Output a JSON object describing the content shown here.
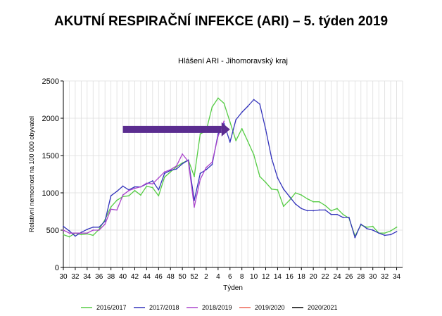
{
  "headline": "AKUTNÍ RESPIRAČNÍ INFEKCE (ARI) – 5. týden 2019",
  "chart_data": {
    "type": "line",
    "title": "Hlášení ARI   -   Jihomoravský kraj",
    "xlabel": "Týden",
    "ylabel": "Relativní nemocnost na 100 000 obyvatel",
    "ylim": [
      0,
      2500
    ],
    "yticks": [
      0,
      500,
      1000,
      1500,
      2000,
      2500
    ],
    "grid": true,
    "legend_position": "bottom",
    "x_tick_labels": [
      "30",
      "32",
      "34",
      "36",
      "38",
      "40",
      "42",
      "44",
      "46",
      "48",
      "50",
      "52",
      "2",
      "4",
      "6",
      "8",
      "10",
      "12",
      "14",
      "16",
      "18",
      "20",
      "22",
      "24",
      "26",
      "28",
      "30",
      "32",
      "34"
    ],
    "x_weeks": [
      "30",
      "31",
      "32",
      "33",
      "34",
      "35",
      "36",
      "37",
      "38",
      "39",
      "40",
      "41",
      "42",
      "43",
      "44",
      "45",
      "46",
      "47",
      "48",
      "49",
      "50",
      "51",
      "52",
      "1",
      "2",
      "3",
      "4",
      "5",
      "6",
      "7",
      "8",
      "9",
      "10",
      "11",
      "12",
      "13",
      "14",
      "15",
      "16",
      "17",
      "18",
      "19",
      "20",
      "21",
      "22",
      "23",
      "24",
      "25",
      "26",
      "27",
      "28",
      "29",
      "30",
      "31",
      "32",
      "33",
      "34",
      "35"
    ],
    "arrow": {
      "color": "#5b2d90",
      "from_week_index": 10,
      "to_week_index": 28,
      "y": 1850
    },
    "series": [
      {
        "name": "2016/2017",
        "color": "#55cc44",
        "values": [
          440,
          410,
          460,
          440,
          450,
          430,
          510,
          640,
          810,
          900,
          950,
          960,
          1030,
          970,
          1090,
          1070,
          960,
          1210,
          1280,
          1350,
          1400,
          1440,
          1220,
          1790,
          1830,
          2150,
          2270,
          2200,
          1950,
          1700,
          1860,
          1690,
          1510,
          1220,
          1140,
          1050,
          1040,
          820,
          900,
          1000,
          970,
          920,
          880,
          880,
          830,
          760,
          790,
          710,
          660,
          420,
          570,
          540,
          550,
          460,
          460,
          490,
          540
        ]
      },
      {
        "name": "2017/2018",
        "color": "#3333bb",
        "values": [
          550,
          490,
          420,
          470,
          510,
          540,
          540,
          620,
          960,
          1020,
          1090,
          1040,
          1080,
          1080,
          1120,
          1160,
          1040,
          1260,
          1300,
          1320,
          1390,
          1440,
          900,
          1260,
          1310,
          1380,
          1790,
          1930,
          1680,
          1980,
          2080,
          2160,
          2250,
          2190,
          1850,
          1460,
          1200,
          1050,
          950,
          850,
          790,
          760,
          760,
          770,
          770,
          710,
          710,
          670,
          670,
          400,
          580,
          520,
          500,
          460,
          430,
          440,
          480
        ]
      },
      {
        "name": "2018/2019",
        "color": "#aa44cc",
        "values": [
          500,
          460,
          460,
          460,
          460,
          500,
          500,
          580,
          780,
          770,
          970,
          1030,
          1060,
          1080,
          1130,
          1120,
          1200,
          1280,
          1310,
          1360,
          1520,
          1420,
          810,
          1180,
          1340,
          1410,
          1760,
          1960
        ]
      },
      {
        "name": "2019/2020",
        "color": "#ee6655",
        "values": []
      },
      {
        "name": "2020/2021",
        "color": "#000000",
        "values": []
      }
    ]
  }
}
